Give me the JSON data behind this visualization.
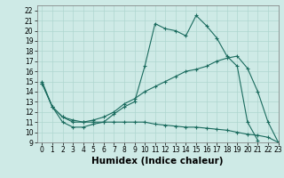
{
  "xlabel": "Humidex (Indice chaleur)",
  "xlim": [
    -0.5,
    23
  ],
  "ylim": [
    9,
    22.5
  ],
  "xticks": [
    0,
    1,
    2,
    3,
    4,
    5,
    6,
    7,
    8,
    9,
    10,
    11,
    12,
    13,
    14,
    15,
    16,
    17,
    18,
    19,
    20,
    21,
    22,
    23
  ],
  "yticks": [
    9,
    10,
    11,
    12,
    13,
    14,
    15,
    16,
    17,
    18,
    19,
    20,
    21,
    22
  ],
  "bg_color": "#ceeae6",
  "line_color": "#1a6b5e",
  "line1_x": [
    0,
    1,
    2,
    3,
    4,
    5,
    6,
    7,
    8,
    9,
    10,
    11,
    12,
    13,
    14,
    15,
    16,
    17,
    18,
    19,
    20,
    21
  ],
  "line1_y": [
    15,
    12.5,
    11,
    10.5,
    10.5,
    10.8,
    11,
    11.8,
    12.5,
    13,
    16.5,
    20.7,
    20.2,
    20.0,
    19.5,
    21.5,
    20.5,
    19.3,
    17.5,
    16.5,
    11.0,
    9.2
  ],
  "line2_x": [
    0,
    1,
    2,
    3,
    4,
    5,
    6,
    7,
    8,
    9,
    10,
    11,
    12,
    13,
    14,
    15,
    16,
    17,
    18,
    19,
    20,
    21,
    22,
    23
  ],
  "line2_y": [
    14.8,
    12.5,
    11.5,
    11.2,
    11.0,
    11.2,
    11.5,
    12.0,
    12.8,
    13.3,
    14.0,
    14.5,
    15.0,
    15.5,
    16.0,
    16.2,
    16.5,
    17.0,
    17.3,
    17.5,
    16.3,
    14.0,
    11.0,
    9.0
  ],
  "line3_x": [
    0,
    1,
    2,
    3,
    4,
    5,
    6,
    7,
    8,
    9,
    10,
    11,
    12,
    13,
    14,
    15,
    16,
    17,
    18,
    19,
    20,
    21,
    22,
    23
  ],
  "line3_y": [
    14.8,
    12.5,
    11.5,
    11.0,
    11.0,
    11.0,
    11.0,
    11.0,
    11.0,
    11.0,
    11.0,
    10.8,
    10.7,
    10.6,
    10.5,
    10.5,
    10.4,
    10.3,
    10.2,
    10.0,
    9.8,
    9.7,
    9.5,
    9.0
  ],
  "grid_color": "#afd6d0",
  "tick_fontsize": 5.5,
  "label_fontsize": 7.5
}
